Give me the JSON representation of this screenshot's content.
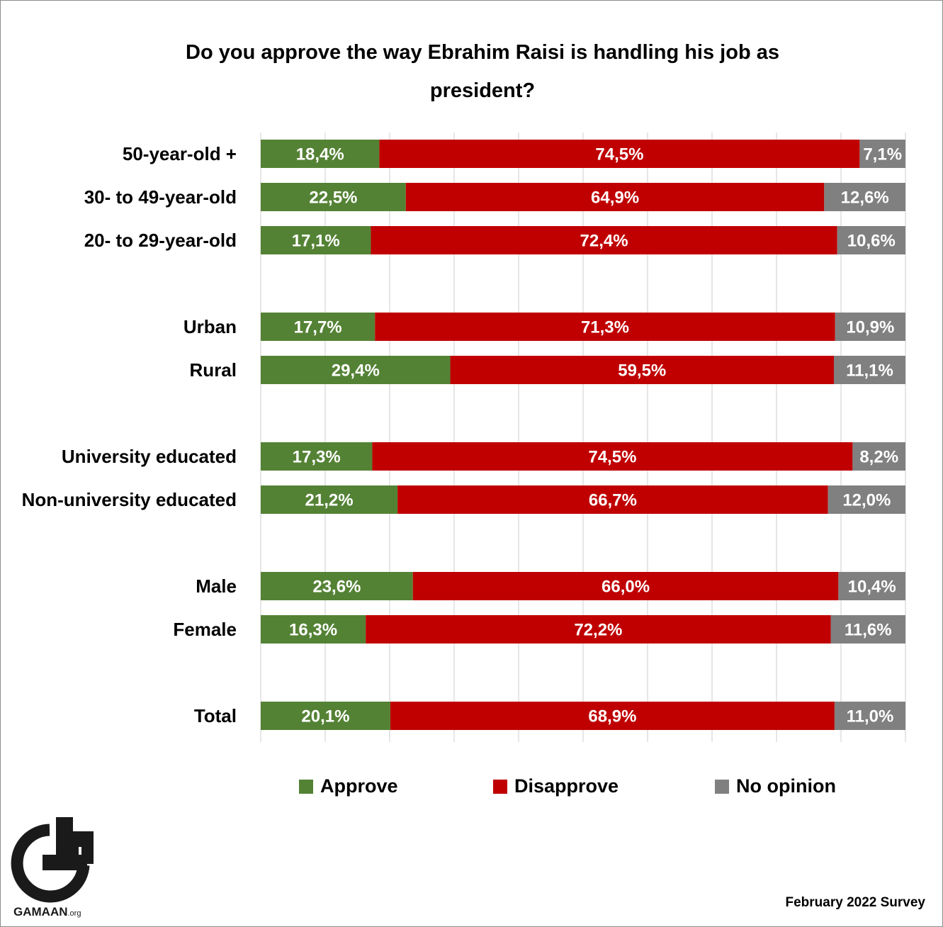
{
  "chart_data": {
    "type": "bar",
    "orientation": "horizontal",
    "stacked": true,
    "percent_stacked": true,
    "title": "Do you approve the way Ebrahim Raisi is handling his job as president?",
    "title_lines": [
      "Do you approve the way Ebrahim Raisi is handling his job as",
      "president?"
    ],
    "categories": [
      "50-year-old +",
      "30- to 49-year-old",
      "20- to 29-year-old",
      "Urban",
      "Rural",
      "University educated",
      "Non-university educated",
      "Male",
      "Female",
      "Total"
    ],
    "groups": [
      [
        0,
        1,
        2
      ],
      [
        3,
        4
      ],
      [
        5,
        6
      ],
      [
        7,
        8
      ],
      [
        9
      ]
    ],
    "series": [
      {
        "name": "Approve",
        "color": "#548235",
        "values": [
          18.4,
          22.5,
          17.1,
          17.7,
          29.4,
          17.3,
          21.2,
          23.6,
          16.3,
          20.1
        ],
        "labels": [
          "18,4%",
          "22,5%",
          "17,1%",
          "17,7%",
          "29,4%",
          "17,3%",
          "21,2%",
          "23,6%",
          "16,3%",
          "20,1%"
        ]
      },
      {
        "name": "Disapprove",
        "color": "#c00000",
        "values": [
          74.5,
          64.9,
          72.4,
          71.3,
          59.5,
          74.5,
          66.7,
          66.0,
          72.2,
          68.9
        ],
        "labels": [
          "74,5%",
          "64,9%",
          "72,4%",
          "71,3%",
          "59,5%",
          "74,5%",
          "66,7%",
          "66,0%",
          "72,2%",
          "68,9%"
        ]
      },
      {
        "name": "No opinion",
        "color": "#808080",
        "values": [
          7.1,
          12.6,
          10.6,
          10.9,
          11.1,
          8.2,
          12.0,
          10.4,
          11.6,
          11.0
        ],
        "labels": [
          "7,1%",
          "12,6%",
          "10,6%",
          "10,9%",
          "11,1%",
          "8,2%",
          "12,0%",
          "10,4%",
          "11,6%",
          "11,0%"
        ]
      }
    ],
    "xlim": [
      0,
      100
    ],
    "gridlines": true,
    "grid_color": "#d9d9d9",
    "legend_position": "bottom",
    "xlabel": "",
    "ylabel": ""
  },
  "logo": {
    "text": "GAMAAN",
    "suffix": ".org"
  },
  "footer": {
    "survey": "February 2022 Survey"
  }
}
